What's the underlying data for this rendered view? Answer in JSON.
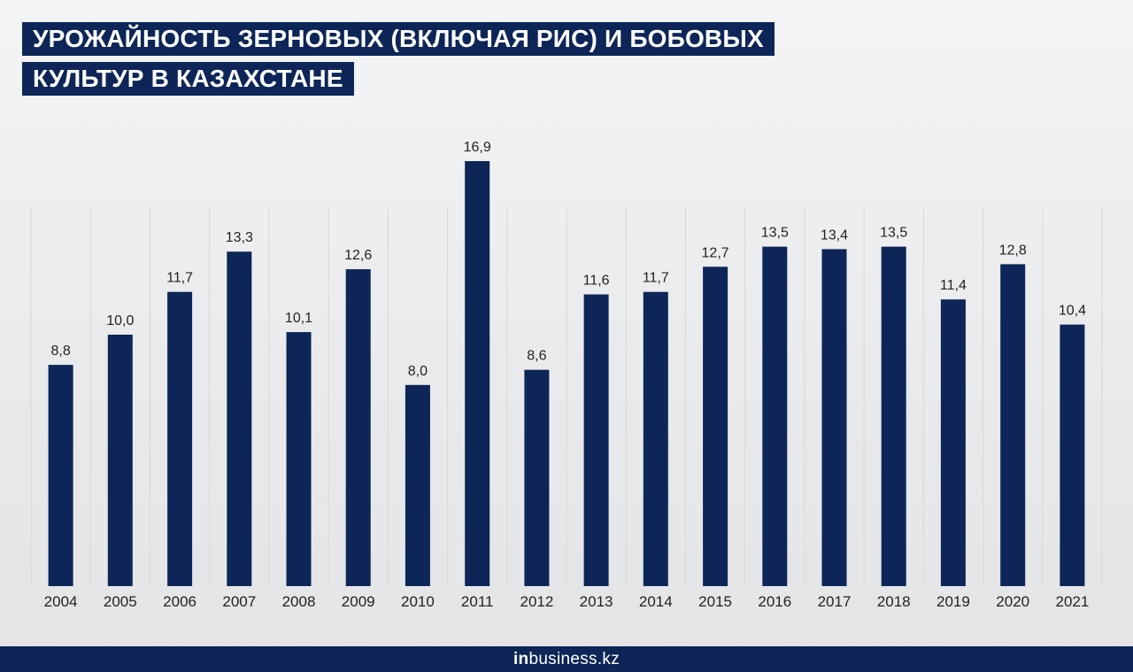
{
  "header": {
    "title_line1": "УРОЖАЙНОСТЬ ЗЕРНОВЫХ (ВКЛЮЧАЯ РИС) И БОБОВЫХ",
    "title_line2": "КУЛЬТУР В КАЗАХСТАНЕ"
  },
  "footer": {
    "brand_prefix": "in",
    "brand_rest": "business.kz"
  },
  "colors": {
    "bar": "#0d2657",
    "banner": "#0d2657"
  },
  "chart_data": {
    "type": "bar",
    "title": "УРОЖАЙНОСТЬ ЗЕРНОВЫХ (ВКЛЮЧАЯ РИС) И БОБОВЫХ КУЛЬТУР В КАЗАХСТАНЕ",
    "categories": [
      "2004",
      "2005",
      "2006",
      "2007",
      "2008",
      "2009",
      "2010",
      "2011",
      "2012",
      "2013",
      "2014",
      "2015",
      "2016",
      "2017",
      "2018",
      "2019",
      "2020",
      "2021"
    ],
    "values": [
      8.8,
      10.0,
      11.7,
      13.3,
      10.1,
      12.6,
      8.0,
      16.9,
      8.6,
      11.6,
      11.7,
      12.7,
      13.5,
      13.4,
      13.5,
      11.4,
      12.8,
      10.4
    ],
    "value_labels": [
      "8,8",
      "10,0",
      "11,7",
      "13,3",
      "10,1",
      "12,6",
      "8,0",
      "16,9",
      "8,6",
      "11,6",
      "11,7",
      "12,7",
      "13,5",
      "13,4",
      "13,5",
      "11,4",
      "12,8",
      "10,4"
    ],
    "ylim": [
      0,
      16.9
    ],
    "grid": false,
    "xlabel": "",
    "ylabel": ""
  }
}
